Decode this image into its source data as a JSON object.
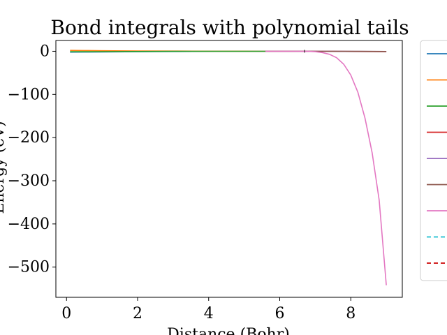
{
  "chart_data": {
    "type": "line",
    "title": "Bond integrals with polynomial tails",
    "xlabel": "Distance (Bohr)",
    "ylabel": "Energy (eV)",
    "xlim": [
      -0.3,
      9.45
    ],
    "ylim": [
      -570,
      25
    ],
    "x_ticks": [
      "0",
      "2",
      "4",
      "6",
      "8"
    ],
    "y_ticks": [
      "0",
      "−100",
      "−200",
      "−300",
      "−400",
      "−500"
    ],
    "x_tick_values": [
      0,
      2,
      4,
      6,
      8
    ],
    "y_tick_values": [
      0,
      -100,
      -200,
      -300,
      -400,
      -500
    ],
    "grid": false,
    "legend_placement": "outside-right",
    "series": [
      {
        "color": "#1f77b4",
        "dash": false,
        "points": [
          [
            0.1,
            -2.0
          ],
          [
            0.5,
            -1.8
          ],
          [
            1.0,
            -1.5
          ],
          [
            2.0,
            -1.0
          ],
          [
            3.0,
            -0.5
          ],
          [
            4.0,
            -0.2
          ],
          [
            5.0,
            -0.05
          ],
          [
            5.6,
            0
          ]
        ]
      },
      {
        "color": "#ff7f0e",
        "dash": false,
        "points": [
          [
            0.1,
            2.0
          ],
          [
            0.5,
            1.7
          ],
          [
            1.0,
            1.3
          ],
          [
            2.0,
            0.8
          ],
          [
            3.0,
            0.4
          ],
          [
            4.0,
            0.15
          ],
          [
            5.0,
            0.03
          ],
          [
            5.6,
            0
          ]
        ]
      },
      {
        "color": "#2ca02c",
        "dash": false,
        "points": [
          [
            0.1,
            -1.0
          ],
          [
            0.5,
            -1.0
          ],
          [
            1.0,
            -0.9
          ],
          [
            2.0,
            -0.6
          ],
          [
            3.0,
            -0.3
          ],
          [
            4.0,
            -0.1
          ],
          [
            5.0,
            -0.02
          ],
          [
            5.6,
            0
          ]
        ]
      },
      {
        "color": "#d62728",
        "dash": false,
        "points": [
          [
            5.6,
            0
          ],
          [
            6.7,
            0
          ],
          [
            7.5,
            -0.3
          ],
          [
            8.2,
            -0.6
          ],
          [
            9.0,
            -0.8
          ]
        ]
      },
      {
        "color": "#9467bd",
        "dash": false,
        "points": [
          [
            5.6,
            0
          ],
          [
            6.7,
            0
          ],
          [
            7.5,
            -0.2
          ],
          [
            8.2,
            -0.4
          ],
          [
            9.0,
            -0.6
          ]
        ]
      },
      {
        "color": "#8c564b",
        "dash": false,
        "points": [
          [
            5.6,
            0
          ],
          [
            6.7,
            0
          ],
          [
            7.5,
            -0.1
          ],
          [
            8.2,
            -0.3
          ],
          [
            9.0,
            -0.5
          ]
        ]
      },
      {
        "color": "#e377c2",
        "dash": false,
        "points": [
          [
            5.6,
            0
          ],
          [
            6.0,
            0
          ],
          [
            6.4,
            0
          ],
          [
            6.8,
            -0.2
          ],
          [
            7.0,
            -1.0
          ],
          [
            7.2,
            -3.0
          ],
          [
            7.4,
            -7.0
          ],
          [
            7.6,
            -15.0
          ],
          [
            7.8,
            -30.0
          ],
          [
            8.0,
            -55.0
          ],
          [
            8.2,
            -95.0
          ],
          [
            8.4,
            -155.0
          ],
          [
            8.6,
            -235.0
          ],
          [
            8.8,
            -345.0
          ],
          [
            9.0,
            -542.0
          ]
        ]
      },
      {
        "color": "#17becf",
        "dash": true,
        "points": []
      },
      {
        "color": "#cc0000",
        "dash": true,
        "points": []
      }
    ],
    "markers": [
      {
        "x": 6.7,
        "color": "#000000"
      }
    ]
  }
}
